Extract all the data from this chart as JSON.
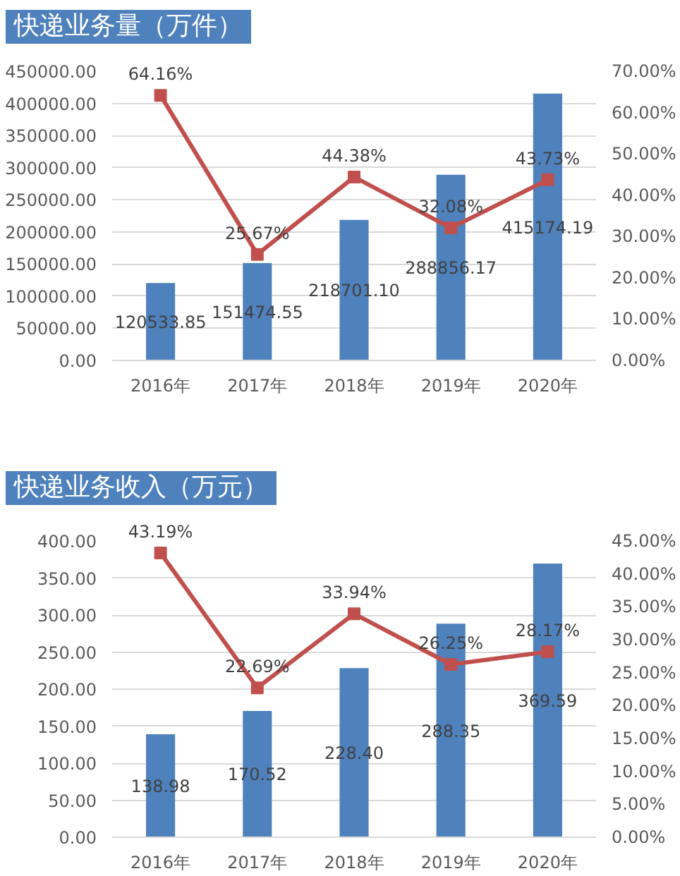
{
  "chart_data": [
    {
      "type": "bar",
      "title": "快递业务量（万件）",
      "categories": [
        "2016年",
        "2017年",
        "2018年",
        "2019年",
        "2020年"
      ],
      "series": [
        {
          "color": "#4f81bd",
          "values": [
            120533.85,
            151474.55,
            218701.1,
            288856.17,
            415174.19
          ],
          "value_labels": [
            "120533.85",
            "151474.55",
            "218701.10",
            "288856.17",
            "415174.19"
          ]
        },
        {
          "type": "line",
          "axis": "y2",
          "color": "#c0504d",
          "values": [
            64.16,
            25.67,
            44.38,
            32.08,
            43.73
          ],
          "value_labels": [
            "64.16%",
            "25.67%",
            "44.38%",
            "32.08%",
            "43.73%"
          ]
        }
      ],
      "ylim": [
        0,
        450000
      ],
      "yticks": [
        {
          "value": 0,
          "label": "0.00"
        },
        {
          "value": 50000,
          "label": "50000.00"
        },
        {
          "value": 100000,
          "label": "100000.00"
        },
        {
          "value": 150000,
          "label": "150000.00"
        },
        {
          "value": 200000,
          "label": "200000.00"
        },
        {
          "value": 250000,
          "label": "250000.00"
        },
        {
          "value": 300000,
          "label": "300000.00"
        },
        {
          "value": 350000,
          "label": "350000.00"
        },
        {
          "value": 400000,
          "label": "400000.00"
        },
        {
          "value": 450000,
          "label": "450000.00"
        }
      ],
      "y2lim": [
        0,
        70
      ],
      "y2ticks": [
        {
          "value": 0,
          "label": "0.00%"
        },
        {
          "value": 10,
          "label": "10.00%"
        },
        {
          "value": 20,
          "label": "20.00%"
        },
        {
          "value": 30,
          "label": "30.00%"
        },
        {
          "value": 40,
          "label": "40.00%"
        },
        {
          "value": 50,
          "label": "50.00%"
        },
        {
          "value": 60,
          "label": "60.00%"
        },
        {
          "value": 70,
          "label": "70.00%"
        }
      ],
      "grid": "y",
      "marker": "square"
    },
    {
      "type": "bar",
      "title": "快递业务收入（万元）",
      "categories": [
        "2016年",
        "2017年",
        "2018年",
        "2019年",
        "2020年"
      ],
      "series": [
        {
          "color": "#4f81bd",
          "values": [
            138.98,
            170.52,
            228.4,
            288.35,
            369.59
          ],
          "value_labels": [
            "138.98",
            "170.52",
            "228.40",
            "288.35",
            "369.59"
          ]
        },
        {
          "type": "line",
          "axis": "y2",
          "color": "#c0504d",
          "values": [
            43.19,
            22.69,
            33.94,
            26.25,
            28.17
          ],
          "value_labels": [
            "43.19%",
            "22.69%",
            "33.94%",
            "26.25%",
            "28.17%"
          ]
        }
      ],
      "ylim": [
        0,
        400
      ],
      "yticks": [
        {
          "value": 0,
          "label": "0.00"
        },
        {
          "value": 50,
          "label": "50.00"
        },
        {
          "value": 100,
          "label": "100.00"
        },
        {
          "value": 150,
          "label": "150.00"
        },
        {
          "value": 200,
          "label": "200.00"
        },
        {
          "value": 250,
          "label": "250.00"
        },
        {
          "value": 300,
          "label": "300.00"
        },
        {
          "value": 350,
          "label": "350.00"
        },
        {
          "value": 400,
          "label": "400.00"
        }
      ],
      "y2lim": [
        0,
        45
      ],
      "y2ticks": [
        {
          "value": 0,
          "label": "0.00%"
        },
        {
          "value": 5,
          "label": "5.00%"
        },
        {
          "value": 10,
          "label": "10.00%"
        },
        {
          "value": 15,
          "label": "15.00%"
        },
        {
          "value": 20,
          "label": "20.00%"
        },
        {
          "value": 25,
          "label": "25.00%"
        },
        {
          "value": 30,
          "label": "30.00%"
        },
        {
          "value": 35,
          "label": "35.00%"
        },
        {
          "value": 40,
          "label": "40.00%"
        },
        {
          "value": 45,
          "label": "45.00%"
        }
      ],
      "grid": "y",
      "marker": "square"
    }
  ]
}
